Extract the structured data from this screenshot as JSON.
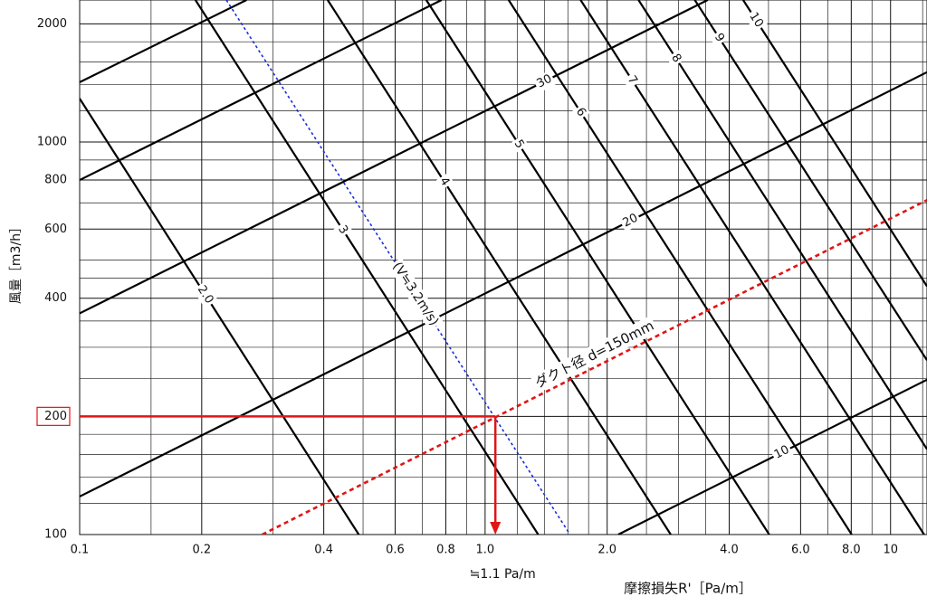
{
  "chart_data": {
    "type": "nomogram",
    "x_label": "摩擦損失R'［Pa/m］",
    "y_label": "風量［m3/h］",
    "xscale": "log",
    "yscale": "log",
    "xlim": [
      0.1,
      12.3
    ],
    "ylim": [
      100,
      2300
    ],
    "xticks": [
      0.1,
      0.2,
      0.4,
      0.6,
      0.8,
      {
        "value": 1,
        "label": "1.0"
      },
      {
        "value": 2,
        "label": "2.0"
      },
      {
        "value": 4,
        "label": "4.0"
      },
      {
        "value": 6,
        "label": "6.0"
      },
      {
        "value": 8,
        "label": "8.0"
      },
      10
    ],
    "yticks": [
      100,
      200,
      400,
      600,
      800,
      1000,
      2000
    ],
    "xgrid_minor": [
      0.15,
      0.3,
      0.5,
      0.7,
      0.9,
      1.2,
      1.4,
      1.6,
      1.8,
      2.5,
      3,
      3.5,
      5,
      7,
      9,
      12
    ],
    "ygrid_minor": [
      120,
      140,
      160,
      180,
      250,
      300,
      350,
      450,
      500,
      700,
      900,
      1200,
      1400,
      1600,
      1800
    ],
    "grid": true,
    "velocity_lines": [
      {
        "label": "2.0",
        "points": [
          [
            0.1,
            1290
          ],
          [
            0.488,
            100
          ]
        ]
      },
      {
        "label": "3",
        "points": [
          [
            0.193,
            2300
          ],
          [
            1.352,
            100
          ]
        ]
      },
      {
        "label": "4",
        "points": [
          [
            0.409,
            2300
          ],
          [
            2.87,
            100
          ]
        ]
      },
      {
        "label": "5",
        "points": [
          [
            0.716,
            2300
          ],
          [
            5.02,
            100
          ]
        ]
      },
      {
        "label": "6",
        "points": [
          [
            1.143,
            2300
          ],
          [
            8.02,
            100
          ]
        ]
      },
      {
        "label": "7",
        "points": [
          [
            1.72,
            2300
          ],
          [
            12.1,
            100
          ]
        ]
      },
      {
        "label": "8",
        "points": [
          [
            2.39,
            2300
          ],
          [
            12.3,
            165
          ]
        ]
      },
      {
        "label": "9",
        "points": [
          [
            3.29,
            2300
          ],
          [
            12.3,
            278
          ]
        ]
      },
      {
        "label": "10",
        "points": [
          [
            4.33,
            2300
          ],
          [
            12.3,
            429
          ]
        ]
      }
    ],
    "diameter_lines": [
      {
        "label": null,
        "points": [
          [
            0.1,
            1420
          ],
          [
            0.258,
            2300
          ]
        ]
      },
      {
        "label": null,
        "points": [
          [
            0.1,
            800
          ],
          [
            0.781,
            2300
          ]
        ]
      },
      {
        "label": "30",
        "points": [
          [
            0.1,
            366
          ],
          [
            3.54,
            2300
          ]
        ]
      },
      {
        "label": "20",
        "points": [
          [
            0.1,
            125
          ],
          [
            12.3,
            1506
          ]
        ]
      },
      {
        "label": "10",
        "points": [
          [
            2.13,
            100
          ],
          [
            12.3,
            248
          ]
        ]
      }
    ],
    "reference_line": {
      "label": "(V≒3.2m/s)",
      "color": "#1a2fd6",
      "points": [
        [
          0.23,
          2300
        ],
        [
          1.62,
          100
        ]
      ]
    },
    "duct_line": {
      "label": "ダクト径 d=150mm",
      "color": "#e01515",
      "points": [
        [
          0.282,
          100
        ],
        [
          12.3,
          711
        ]
      ]
    },
    "reading": {
      "flow": 200,
      "friction": 1.06,
      "result_label": "≒1.1 Pa/m",
      "color": "#e01515"
    }
  }
}
